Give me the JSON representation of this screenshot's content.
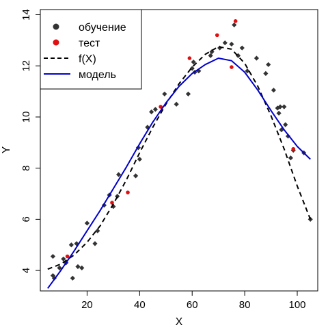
{
  "chart_data": {
    "type": "scatter",
    "xlabel": "X",
    "ylabel": "Y",
    "xlim": [
      2.2,
      107.8
    ],
    "ylim": [
      3.2,
      14.2
    ],
    "xticks": [
      "20",
      "40",
      "60",
      "80",
      "100"
    ],
    "yticks": [
      "4",
      "6",
      "8",
      "10",
      "12",
      "14"
    ],
    "legend": {
      "position": "top-left",
      "entries": [
        {
          "label": "обучение",
          "kind": "point",
          "color": "#333333"
        },
        {
          "label": "тест",
          "kind": "point",
          "color": "#e01010"
        },
        {
          "label": "f(X)",
          "kind": "dashed-line",
          "color": "#000000"
        },
        {
          "label": "модель",
          "kind": "line",
          "color": "#0000cc"
        }
      ]
    },
    "series": [
      {
        "name": "обучение",
        "kind": "points",
        "color": "#333333",
        "x": [
          7,
          7,
          7.5,
          9.5,
          11,
          12,
          14,
          14.5,
          16,
          16.5,
          18,
          20,
          23,
          24,
          26.5,
          28.5,
          30,
          31.5,
          32,
          38.5,
          39.5,
          40,
          43,
          44.5,
          46,
          49.5,
          54,
          58.5,
          60,
          60.5,
          61,
          62.5,
          67,
          67.5,
          70.5,
          72.5,
          75,
          76,
          77.5,
          79,
          81,
          84.5,
          88,
          89,
          91,
          92.5,
          93,
          93.5,
          94,
          95,
          95.5,
          96.5,
          97.5,
          98.5,
          102.5,
          105
        ],
        "y": [
          4.55,
          3.8,
          3.7,
          4.1,
          4.45,
          4.3,
          5.0,
          3.7,
          5.05,
          4.15,
          4.1,
          5.85,
          5.05,
          5.55,
          6.55,
          6.95,
          6.5,
          6.9,
          7.75,
          7.7,
          8.8,
          8.35,
          9.6,
          10.2,
          10.3,
          10.9,
          10.5,
          10.9,
          11.9,
          12.15,
          11.75,
          11.8,
          12.4,
          12.55,
          12.7,
          12.9,
          12.85,
          13.6,
          12.4,
          12.7,
          11.8,
          12.3,
          11.7,
          12.05,
          11.05,
          10.35,
          10.15,
          10.4,
          9.5,
          10.4,
          9.7,
          9.25,
          8.4,
          8.7,
          8.6,
          6.0
        ]
      },
      {
        "name": "тест",
        "kind": "points",
        "color": "#e01010",
        "x": [
          12.5,
          29.5,
          35.5,
          48,
          59,
          69.5,
          75,
          76.5,
          98.5
        ],
        "y": [
          4.55,
          6.65,
          7.05,
          10.4,
          12.3,
          13.2,
          11.95,
          13.75,
          8.75
        ]
      },
      {
        "name": "f(X)",
        "kind": "dashed-line",
        "color": "#000000",
        "x": [
          5,
          10,
          15,
          20,
          25,
          30,
          35,
          40,
          45,
          50,
          55,
          60,
          65,
          70,
          75,
          80,
          85,
          90,
          95,
          100,
          105
        ],
        "y": [
          4.05,
          4.25,
          4.6,
          5.1,
          5.75,
          6.6,
          7.55,
          8.6,
          9.6,
          10.5,
          11.3,
          11.95,
          12.45,
          12.75,
          12.65,
          12.1,
          11.2,
          10.05,
          8.75,
          7.3,
          6.0
        ]
      },
      {
        "name": "модель",
        "kind": "line",
        "color": "#0000cc",
        "x": [
          5,
          10,
          15,
          20,
          25,
          30,
          35,
          40,
          45,
          50,
          55,
          60,
          65,
          70,
          75,
          80,
          85,
          90,
          95,
          100,
          105
        ],
        "y": [
          3.3,
          4.0,
          4.75,
          5.55,
          6.35,
          7.2,
          8.05,
          8.95,
          9.8,
          10.55,
          11.2,
          11.7,
          12.05,
          12.3,
          12.2,
          11.75,
          11.05,
          10.25,
          9.5,
          8.85,
          8.35
        ]
      }
    ]
  }
}
